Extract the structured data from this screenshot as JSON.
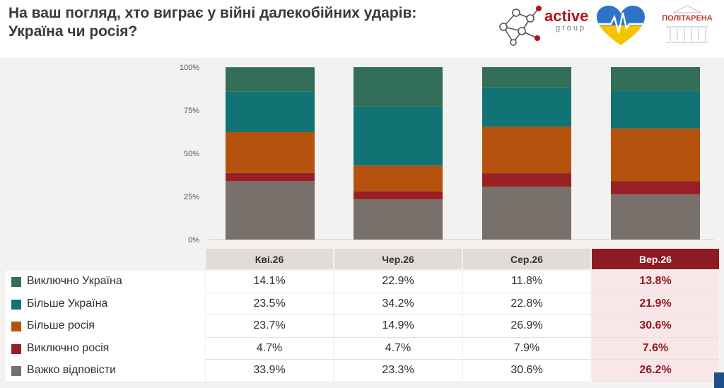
{
  "title_lines": [
    "На ваш погляд, хто виграє у війні далекобійних ударів:",
    "Україна чи росія?"
  ],
  "logos": {
    "active_word": "active",
    "active_sub": "group",
    "politarena": "ПОЛІТАРЕНА"
  },
  "colors": {
    "exclusively_ukraine": "#336e58",
    "more_ukraine": "#117373",
    "more_russia": "#b5520e",
    "exclusively_russia": "#9a1f24",
    "hard_to_say": "#78706a",
    "highlight": "#8e1a22"
  },
  "chart_data": {
    "type": "bar",
    "stacked": true,
    "categories": [
      "Кві.26",
      "Чер.26",
      "Сер.26",
      "Вер.26"
    ],
    "yticks": [
      "0%",
      "25%",
      "50%",
      "75%",
      "100%"
    ],
    "ylim": [
      0,
      100
    ],
    "series": [
      {
        "name": "Важко відповісти",
        "color": "#78706a",
        "values": [
          33.9,
          23.3,
          30.6,
          26.2
        ]
      },
      {
        "name": "Виключно росія",
        "color": "#9a1f24",
        "values": [
          4.7,
          4.7,
          7.9,
          7.6
        ]
      },
      {
        "name": "Більше росія",
        "color": "#b5520e",
        "values": [
          23.7,
          14.9,
          26.9,
          30.6
        ]
      },
      {
        "name": "Більше Україна",
        "color": "#117373",
        "values": [
          23.5,
          34.2,
          22.8,
          21.9
        ]
      },
      {
        "name": "Виключно Україна",
        "color": "#336e58",
        "values": [
          14.1,
          22.9,
          11.8,
          13.8
        ]
      }
    ]
  },
  "table": {
    "headers": [
      "Кві.26",
      "Чер.26",
      "Сер.26",
      "Вер.26"
    ],
    "rows": [
      {
        "label": "Виключно Україна",
        "color": "#336e58",
        "values": [
          "14.1%",
          "22.9%",
          "11.8%",
          "13.8%"
        ]
      },
      {
        "label": "Більше Україна",
        "color": "#117373",
        "values": [
          "23.5%",
          "34.2%",
          "22.8%",
          "21.9%"
        ]
      },
      {
        "label": "Більше росія",
        "color": "#b5520e",
        "values": [
          "23.7%",
          "14.9%",
          "26.9%",
          "30.6%"
        ]
      },
      {
        "label": "Виключно росія",
        "color": "#9a1f24",
        "values": [
          "4.7%",
          "4.7%",
          "7.9%",
          "7.6%"
        ]
      },
      {
        "label": "Важко відповісти",
        "color": "#78706a",
        "values": [
          "33.9%",
          "23.3%",
          "30.6%",
          "26.2%"
        ]
      }
    ]
  }
}
